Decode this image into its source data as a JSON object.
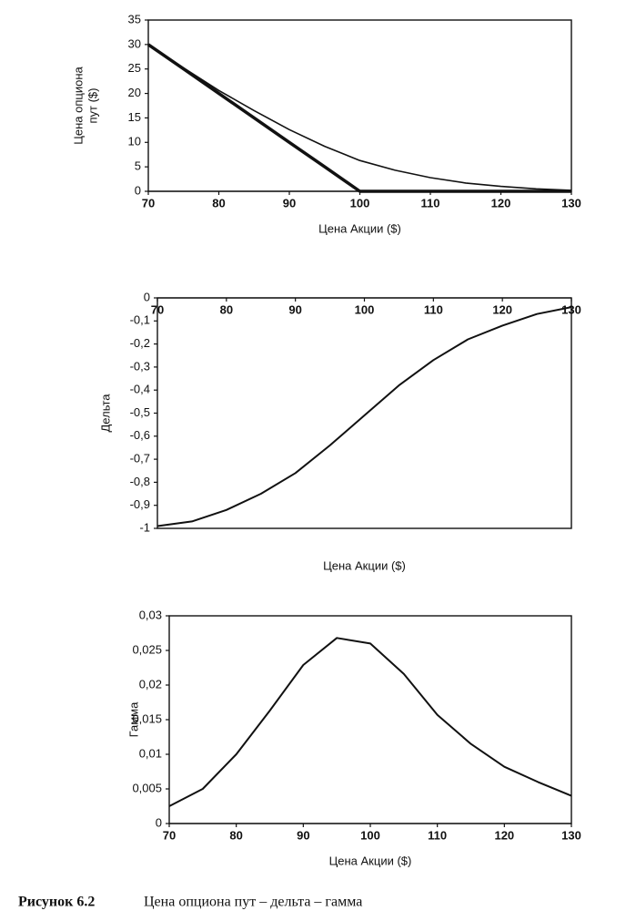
{
  "chart_data": [
    {
      "type": "line",
      "ylabel": [
        "Цена опциона",
        "пут ($)"
      ],
      "xlabel": "Цена Акции ($)",
      "x": [
        70,
        75,
        80,
        85,
        90,
        95,
        100,
        105,
        110,
        115,
        120,
        125,
        130
      ],
      "series": [
        {
          "color": "#111111",
          "linewidth": 3.5,
          "values": [
            30,
            25,
            20,
            15,
            10,
            5,
            0,
            0,
            0,
            0,
            0,
            0,
            0
          ]
        },
        {
          "color": "#111111",
          "linewidth": 1.6,
          "values": [
            30,
            25.2,
            20.6,
            16.5,
            12.6,
            9.2,
            6.3,
            4.3,
            2.8,
            1.7,
            1.0,
            0.5,
            0.2
          ]
        }
      ],
      "xlim": [
        70,
        130
      ],
      "xticks": [
        70,
        80,
        90,
        100,
        110,
        120,
        130
      ],
      "ylim": [
        0,
        35
      ],
      "yticks": [
        0,
        5,
        10,
        15,
        20,
        25,
        30,
        35
      ]
    },
    {
      "type": "line",
      "ylabel": [
        "Дельта"
      ],
      "xlabel": "Цена Акции ($)",
      "x": [
        70,
        75,
        80,
        85,
        90,
        95,
        100,
        105,
        110,
        115,
        120,
        125,
        130
      ],
      "series": [
        {
          "color": "#111111",
          "linewidth": 2,
          "values": [
            -0.99,
            -0.97,
            -0.92,
            -0.85,
            -0.76,
            -0.64,
            -0.51,
            -0.38,
            -0.27,
            -0.18,
            -0.12,
            -0.07,
            -0.04
          ]
        }
      ],
      "xlim": [
        70,
        130
      ],
      "xticks": [
        70,
        80,
        90,
        100,
        110,
        120,
        130
      ],
      "ylim": [
        -1,
        0
      ],
      "yticks": [
        0,
        {
          "value": -0.1,
          "label": "-0,1"
        },
        {
          "value": -0.2,
          "label": "-0,2"
        },
        {
          "value": -0.3,
          "label": "-0,3"
        },
        {
          "value": -0.4,
          "label": "-0,4"
        },
        {
          "value": -0.5,
          "label": "-0,5"
        },
        {
          "value": -0.6,
          "label": "-0,6"
        },
        {
          "value": -0.7,
          "label": "-0,7"
        },
        {
          "value": -0.8,
          "label": "-0,8"
        },
        {
          "value": -0.9,
          "label": "-0,9"
        },
        -1
      ]
    },
    {
      "type": "line",
      "ylabel": [
        "Гамма"
      ],
      "xlabel": "Цена Акции ($)",
      "x": [
        70,
        75,
        80,
        85,
        90,
        95,
        100,
        105,
        110,
        115,
        120,
        125,
        130
      ],
      "series": [
        {
          "color": "#111111",
          "linewidth": 2,
          "values": [
            0.0025,
            0.005,
            0.01,
            0.0163,
            0.0229,
            0.0268,
            0.026,
            0.0216,
            0.0157,
            0.0115,
            0.0082,
            0.006,
            0.004
          ]
        }
      ],
      "xlim": [
        70,
        130
      ],
      "xticks": [
        70,
        80,
        90,
        100,
        110,
        120,
        130
      ],
      "ylim": [
        0,
        0.03
      ],
      "yticks": [
        0,
        {
          "value": 0.005,
          "label": "0,005"
        },
        {
          "value": 0.01,
          "label": "0,01"
        },
        {
          "value": 0.015,
          "label": "0,015"
        },
        {
          "value": 0.02,
          "label": "0,02"
        },
        {
          "value": 0.025,
          "label": "0,025"
        },
        {
          "value": 0.03,
          "label": "0,03"
        }
      ]
    }
  ],
  "figure_caption": {
    "number": "Рисунок 6.2",
    "text": "Цена опциона пут – дельта – гамма"
  }
}
